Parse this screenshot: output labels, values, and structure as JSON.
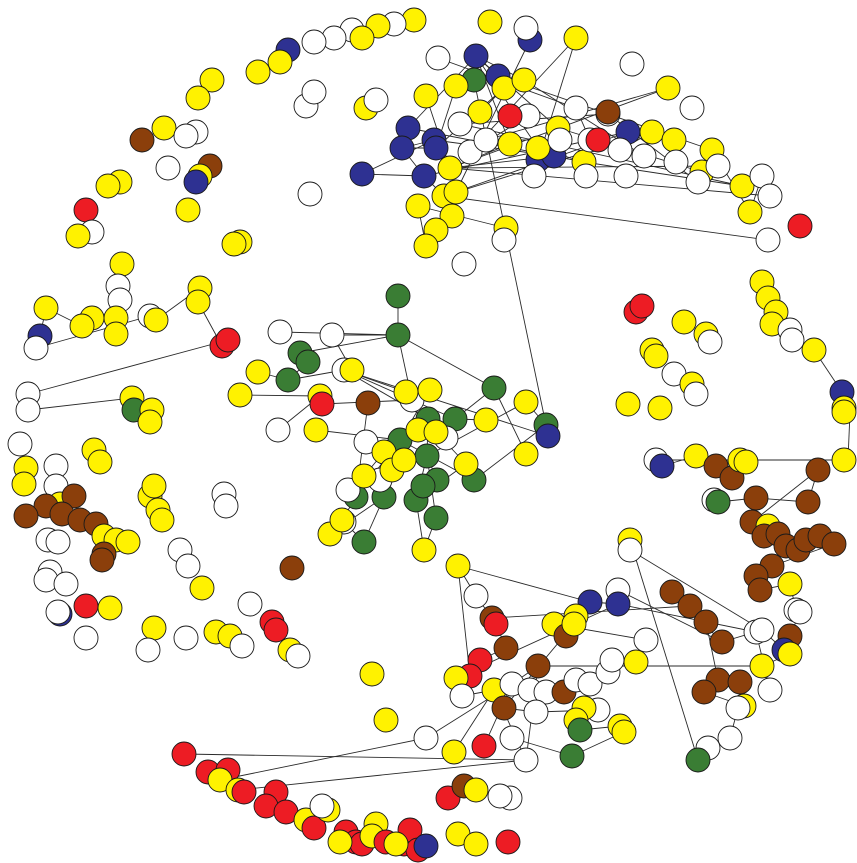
{
  "palette": {
    "yellow": "#fff200",
    "white": "#ffffff",
    "navy": "#2e3192",
    "green": "#3a7d34",
    "brown": "#8b3f0b",
    "red": "#ed1c24",
    "edge": "#2a2a2a",
    "outline": "#1a1a1a"
  }
}
